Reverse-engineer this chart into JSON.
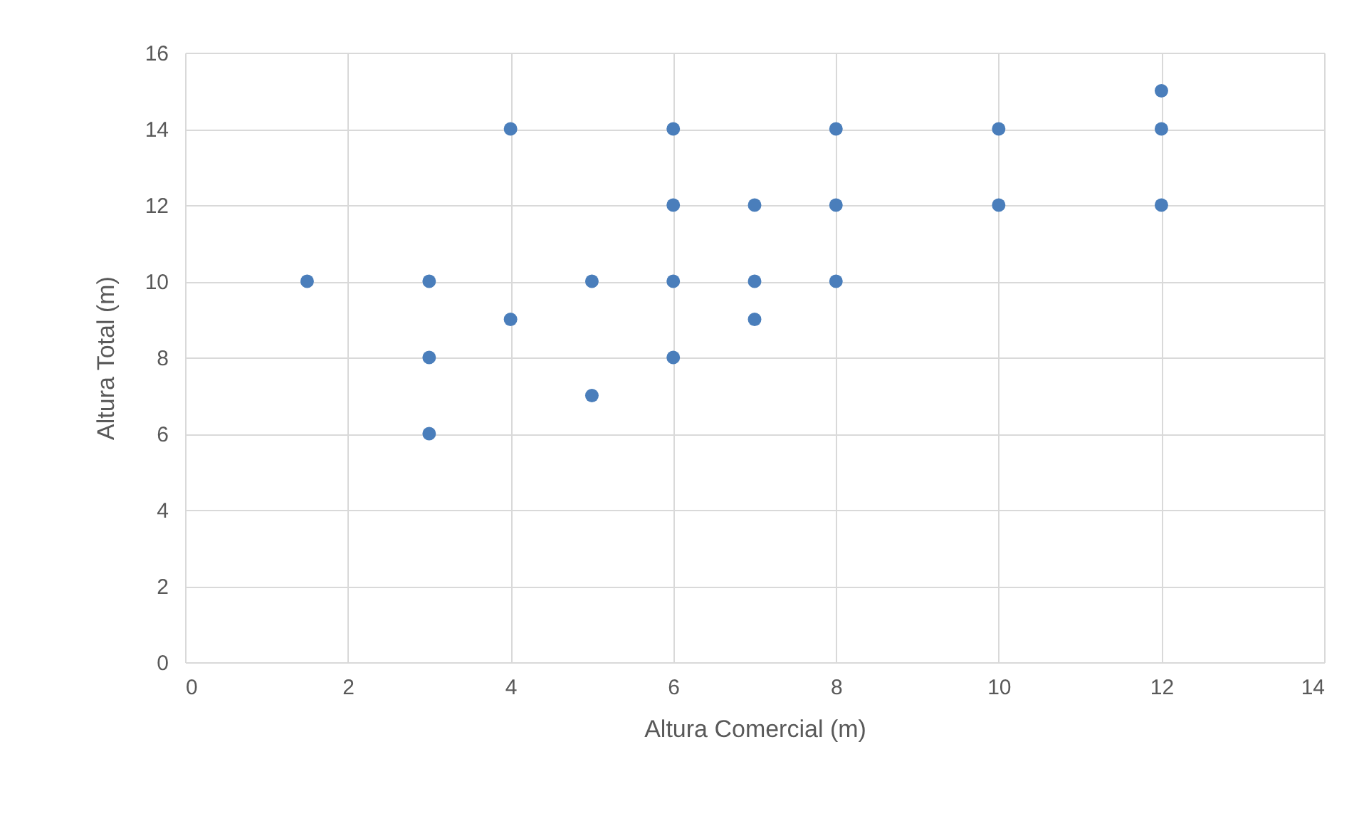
{
  "chart_data": {
    "type": "scatter",
    "xlabel": "Altura Comercial (m)",
    "ylabel": "Altura Total (m)",
    "x": [
      1.5,
      3,
      3,
      3,
      4,
      4,
      5,
      5,
      6,
      6,
      6,
      6,
      7,
      7,
      7,
      8,
      8,
      8,
      10,
      10,
      12,
      12,
      12
    ],
    "values": [
      10,
      10,
      8,
      6,
      14,
      9,
      10,
      7,
      14,
      12,
      10,
      8,
      12,
      10,
      9,
      14,
      12,
      10,
      14,
      12,
      15,
      14,
      12
    ],
    "color": "#4a7ebb",
    "marker": "circle",
    "xlim": [
      0,
      14
    ],
    "xticks": [
      0,
      2,
      4,
      6,
      8,
      10,
      12,
      14
    ],
    "ylim": [
      0,
      16
    ],
    "yticks": [
      0,
      2,
      4,
      6,
      8,
      10,
      12,
      14,
      16
    ],
    "grid": true
  }
}
